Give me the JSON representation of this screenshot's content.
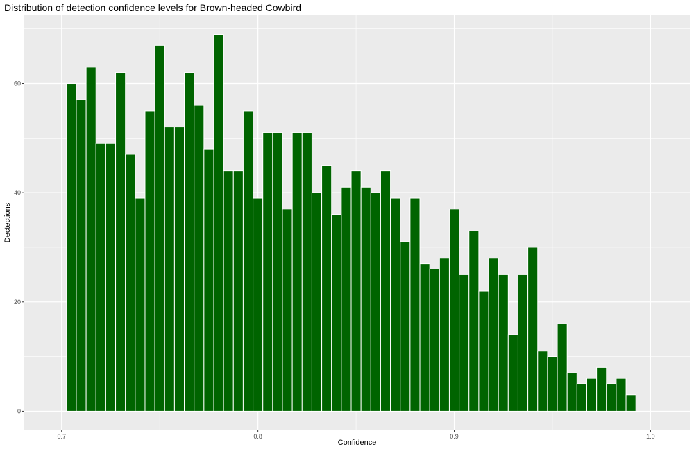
{
  "chart_data": {
    "type": "bar",
    "title": "Distribution of detection confidence levels for Brown-headed Cowbird",
    "xlabel": "Confidence",
    "ylabel": "Dectections",
    "x_ticks": [
      {
        "value": 0.7,
        "label": "0.7"
      },
      {
        "value": 0.8,
        "label": "0.8"
      },
      {
        "value": 0.9,
        "label": "0.9"
      },
      {
        "value": 1.0,
        "label": "1.0"
      }
    ],
    "y_ticks": [
      {
        "value": 0,
        "label": "0"
      },
      {
        "value": 20,
        "label": "20"
      },
      {
        "value": 40,
        "label": "40"
      },
      {
        "value": 60,
        "label": "60"
      }
    ],
    "xlim": [
      0.681,
      1.02
    ],
    "ylim": [
      -3.5,
      72.5
    ],
    "bin_width": 0.005,
    "bin_start": 0.7025,
    "values": [
      60,
      57,
      63,
      49,
      49,
      62,
      47,
      39,
      55,
      67,
      52,
      52,
      62,
      56,
      48,
      69,
      44,
      44,
      55,
      39,
      51,
      51,
      37,
      51,
      51,
      40,
      45,
      36,
      41,
      44,
      41,
      40,
      44,
      39,
      31,
      39,
      27,
      26,
      28,
      37,
      25,
      33,
      22,
      28,
      25,
      14,
      25,
      30,
      11,
      10,
      16,
      7,
      5,
      6,
      8,
      5,
      6,
      3
    ],
    "bar_color": "#006400",
    "panel_background": "#ebebeb",
    "grid_color": "#ffffff",
    "grid": true,
    "legend": "none"
  }
}
